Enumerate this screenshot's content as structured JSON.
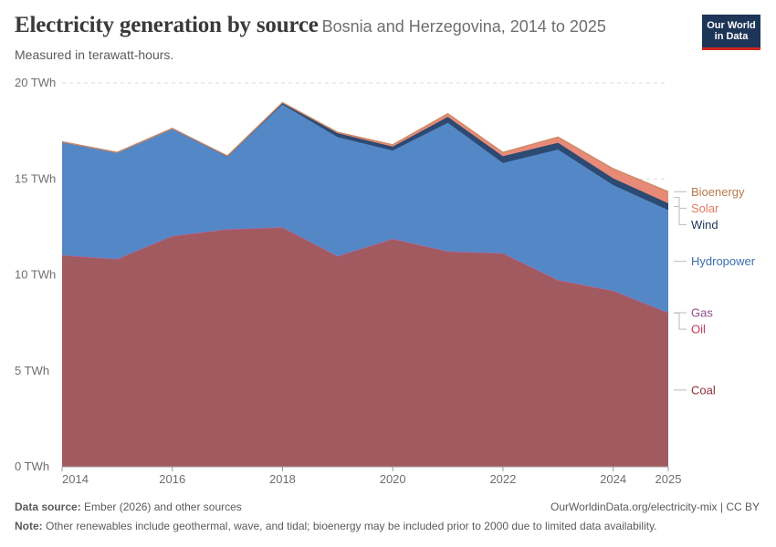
{
  "header": {
    "title": "Electricity generation by source",
    "title_suffix": "Bosnia and Herzegovina, 2014 to 2025",
    "subtitle": "Measured in terawatt-hours.",
    "logo_line1": "Our World",
    "logo_line2": "in Data"
  },
  "footer": {
    "source_label": "Data source:",
    "source_text": "Ember (2026) and other sources",
    "license": "OurWorldinData.org/electricity-mix | CC BY",
    "note_label": "Note:",
    "note_text": "Other renewables include geothermal, wave, and tidal; bioenergy may be included prior to 2000 due to limited data availability."
  },
  "chart_data": {
    "type": "area",
    "stacked": true,
    "x": [
      2014,
      2015,
      2016,
      2017,
      2018,
      2019,
      2020,
      2021,
      2022,
      2023,
      2024,
      2025
    ],
    "x_ticks": [
      {
        "value": 2014,
        "label": "2014"
      },
      {
        "value": 2016,
        "label": "2016"
      },
      {
        "value": 2018,
        "label": "2018"
      },
      {
        "value": 2020,
        "label": "2020"
      },
      {
        "value": 2022,
        "label": "2022"
      },
      {
        "value": 2024,
        "label": "2024"
      },
      {
        "value": 2025,
        "label": "2025"
      }
    ],
    "y_ticks": [
      {
        "value": 0,
        "label": "0 TWh"
      },
      {
        "value": 5,
        "label": "5 TWh"
      },
      {
        "value": 10,
        "label": "10 TWh"
      },
      {
        "value": 15,
        "label": "15 TWh"
      },
      {
        "value": 20,
        "label": "20 TWh"
      }
    ],
    "ylim": [
      0,
      20
    ],
    "legend_placement": "right",
    "series": [
      {
        "name": "Coal",
        "color": "#a05a60",
        "label_color": "#8b2e3b",
        "values": [
          11.0,
          10.8,
          12.0,
          12.35,
          12.45,
          10.95,
          11.85,
          11.2,
          11.1,
          9.7,
          9.15,
          8.0
        ]
      },
      {
        "name": "Oil",
        "color": "#d3506b",
        "label_color": "#c7385a",
        "values": [
          0.02,
          0.02,
          0.02,
          0.02,
          0.02,
          0.02,
          0.02,
          0.02,
          0.02,
          0.02,
          0.02,
          0.02
        ]
      },
      {
        "name": "Gas",
        "color": "#a46ea0",
        "label_color": "#8e4a8a",
        "values": [
          0.01,
          0.01,
          0.01,
          0.01,
          0.01,
          0.01,
          0.01,
          0.01,
          0.01,
          0.01,
          0.01,
          0.01
        ]
      },
      {
        "name": "Hydropower",
        "color": "#5487c6",
        "label_color": "#3d6fae",
        "values": [
          5.9,
          5.55,
          5.6,
          3.8,
          6.4,
          6.2,
          4.6,
          6.7,
          4.7,
          6.8,
          5.5,
          5.35
        ]
      },
      {
        "name": "Wind",
        "color": "#2c4a72",
        "label_color": "#1d3557",
        "values": [
          0.0,
          0.0,
          0.0,
          0.0,
          0.07,
          0.2,
          0.2,
          0.3,
          0.35,
          0.35,
          0.35,
          0.35
        ]
      },
      {
        "name": "Solar",
        "color": "#e88a78",
        "label_color": "#e07b62",
        "values": [
          0.0,
          0.0,
          0.0,
          0.02,
          0.03,
          0.05,
          0.1,
          0.17,
          0.2,
          0.3,
          0.5,
          0.6
        ]
      },
      {
        "name": "Bioenergy",
        "color": "#c98a64",
        "label_color": "#b87a4b",
        "values": [
          0.0,
          0.0,
          0.0,
          0.0,
          0.0,
          0.0,
          0.0,
          0.0,
          0.0,
          0.0,
          0.0,
          0.0
        ]
      }
    ]
  }
}
